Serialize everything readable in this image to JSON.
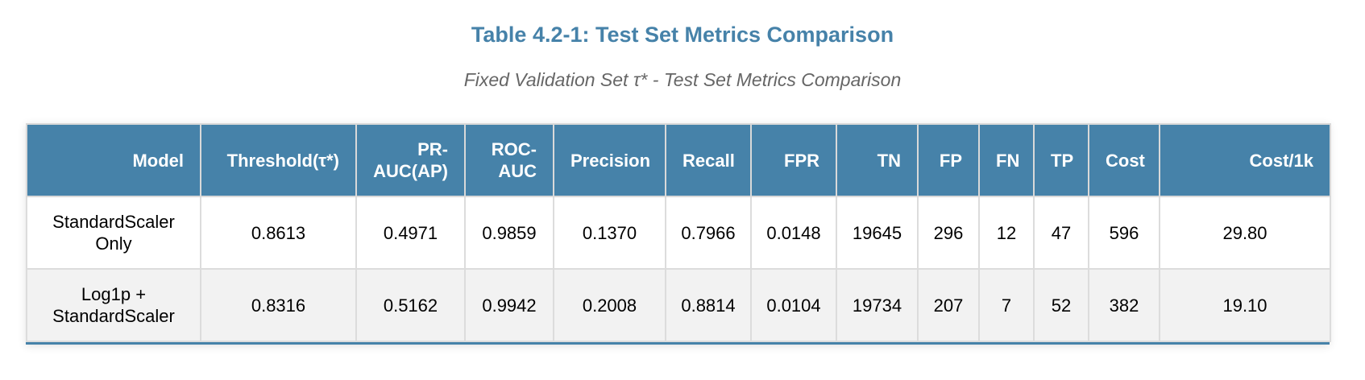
{
  "title": "Table 4.2-1: Test Set Metrics Comparison",
  "subtitle": "Fixed Validation Set τ* - Test Set Metrics Comparison",
  "table": {
    "headers": [
      "Model",
      "Threshold(τ*)",
      "PR-AUC(AP)",
      "ROC-AUC",
      "Precision",
      "Recall",
      "FPR",
      "TN",
      "FP",
      "FN",
      "TP",
      "Cost",
      "Cost/1k"
    ],
    "rows": [
      [
        "StandardScaler Only",
        "0.8613",
        "0.4971",
        "0.9859",
        "0.1370",
        "0.7966",
        "0.0148",
        "19645",
        "296",
        "12",
        "47",
        "596",
        "29.80"
      ],
      [
        "Log1p + StandardScaler",
        "0.8316",
        "0.5162",
        "0.9942",
        "0.2008",
        "0.8814",
        "0.0104",
        "19734",
        "207",
        "7",
        "52",
        "382",
        "19.10"
      ]
    ]
  },
  "colors": {
    "accent": "#4682a9",
    "header_text": "#ffffff",
    "alt_row": "#f2f2f2"
  }
}
